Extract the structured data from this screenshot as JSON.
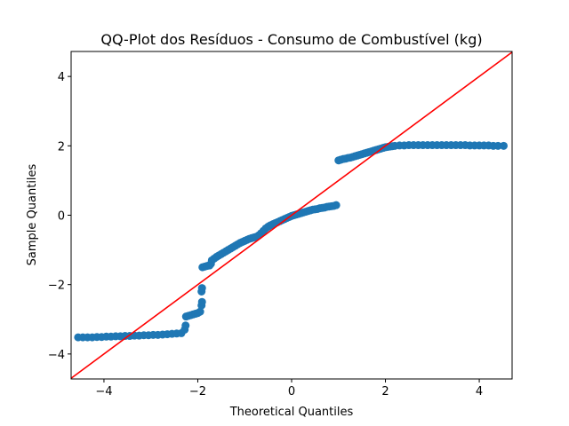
{
  "chart_data": {
    "type": "scatter",
    "title": "QQ-Plot dos Resíduos - Consumo de Combustível (kg)",
    "xlabel": "Theoretical Quantiles",
    "ylabel": "Sample Quantiles",
    "xlim": [
      -4.7,
      4.7
    ],
    "ylim": [
      -4.72,
      4.72
    ],
    "x_ticks": [
      -4,
      -2,
      0,
      2,
      4
    ],
    "y_ticks": [
      -4,
      -2,
      0,
      2,
      4
    ],
    "x_tick_labels": [
      "−4",
      "−2",
      "0",
      "2",
      "4"
    ],
    "y_tick_labels": [
      "−4",
      "−2",
      "0",
      "2",
      "4"
    ],
    "grid": false,
    "marker_color": "#1f77b4",
    "reference_line": {
      "color": "#ff0000",
      "slope": 1,
      "intercept": 0
    },
    "series": [
      {
        "points": [
          [
            -4.55,
            -3.52
          ],
          [
            -4.45,
            -3.52
          ],
          [
            -4.35,
            -3.52
          ],
          [
            -4.25,
            -3.52
          ],
          [
            -4.15,
            -3.51
          ],
          [
            -4.05,
            -3.51
          ],
          [
            -3.95,
            -3.5
          ],
          [
            -3.85,
            -3.5
          ],
          [
            -3.75,
            -3.49
          ],
          [
            -3.65,
            -3.49
          ],
          [
            -3.55,
            -3.48
          ],
          [
            -3.45,
            -3.48
          ],
          [
            -3.35,
            -3.47
          ],
          [
            -3.25,
            -3.47
          ],
          [
            -3.15,
            -3.46
          ],
          [
            -3.05,
            -3.46
          ],
          [
            -2.95,
            -3.45
          ],
          [
            -2.85,
            -3.45
          ],
          [
            -2.75,
            -3.44
          ],
          [
            -2.65,
            -3.43
          ],
          [
            -2.55,
            -3.42
          ],
          [
            -2.45,
            -3.41
          ],
          [
            -2.35,
            -3.4
          ],
          [
            -2.28,
            -3.3
          ],
          [
            -2.26,
            -3.18
          ],
          [
            -2.25,
            -2.92
          ],
          [
            -2.2,
            -2.9
          ],
          [
            -2.15,
            -2.88
          ],
          [
            -2.1,
            -2.86
          ],
          [
            -2.05,
            -2.84
          ],
          [
            -2.0,
            -2.82
          ],
          [
            -1.95,
            -2.78
          ],
          [
            -1.92,
            -2.6
          ],
          [
            -1.91,
            -2.5
          ],
          [
            -1.92,
            -2.2
          ],
          [
            -1.91,
            -2.1
          ],
          [
            -1.9,
            -1.5
          ],
          [
            -1.85,
            -1.48
          ],
          [
            -1.8,
            -1.46
          ],
          [
            -1.75,
            -1.45
          ],
          [
            -1.72,
            -1.4
          ],
          [
            -1.7,
            -1.3
          ],
          [
            -1.65,
            -1.25
          ],
          [
            -1.6,
            -1.2
          ],
          [
            -1.55,
            -1.16
          ],
          [
            -1.5,
            -1.12
          ],
          [
            -1.45,
            -1.08
          ],
          [
            -1.4,
            -1.04
          ],
          [
            -1.35,
            -1.0
          ],
          [
            -1.3,
            -0.96
          ],
          [
            -1.25,
            -0.92
          ],
          [
            -1.2,
            -0.88
          ],
          [
            -1.15,
            -0.84
          ],
          [
            -1.1,
            -0.8
          ],
          [
            -1.05,
            -0.77
          ],
          [
            -1.0,
            -0.74
          ],
          [
            -0.95,
            -0.71
          ],
          [
            -0.9,
            -0.68
          ],
          [
            -0.85,
            -0.66
          ],
          [
            -0.8,
            -0.64
          ],
          [
            -0.75,
            -0.62
          ],
          [
            -0.7,
            -0.58
          ],
          [
            -0.65,
            -0.52
          ],
          [
            -0.6,
            -0.45
          ],
          [
            -0.55,
            -0.38
          ],
          [
            -0.5,
            -0.33
          ],
          [
            -0.45,
            -0.29
          ],
          [
            -0.4,
            -0.26
          ],
          [
            -0.35,
            -0.23
          ],
          [
            -0.3,
            -0.2
          ],
          [
            -0.25,
            -0.17
          ],
          [
            -0.2,
            -0.14
          ],
          [
            -0.15,
            -0.11
          ],
          [
            -0.1,
            -0.08
          ],
          [
            -0.05,
            -0.05
          ],
          [
            0.0,
            -0.02
          ],
          [
            0.05,
            0.0
          ],
          [
            0.1,
            0.02
          ],
          [
            0.15,
            0.04
          ],
          [
            0.2,
            0.06
          ],
          [
            0.25,
            0.08
          ],
          [
            0.3,
            0.1
          ],
          [
            0.35,
            0.12
          ],
          [
            0.4,
            0.14
          ],
          [
            0.45,
            0.16
          ],
          [
            0.5,
            0.17
          ],
          [
            0.55,
            0.18
          ],
          [
            0.6,
            0.2
          ],
          [
            0.65,
            0.21
          ],
          [
            0.7,
            0.22
          ],
          [
            0.75,
            0.24
          ],
          [
            0.8,
            0.25
          ],
          [
            0.85,
            0.26
          ],
          [
            0.9,
            0.27
          ],
          [
            0.95,
            0.29
          ],
          [
            1.0,
            1.58
          ],
          [
            1.05,
            1.6
          ],
          [
            1.1,
            1.62
          ],
          [
            1.15,
            1.63
          ],
          [
            1.2,
            1.65
          ],
          [
            1.25,
            1.66
          ],
          [
            1.3,
            1.68
          ],
          [
            1.35,
            1.7
          ],
          [
            1.4,
            1.72
          ],
          [
            1.45,
            1.74
          ],
          [
            1.5,
            1.76
          ],
          [
            1.55,
            1.78
          ],
          [
            1.6,
            1.8
          ],
          [
            1.65,
            1.82
          ],
          [
            1.7,
            1.84
          ],
          [
            1.75,
            1.86
          ],
          [
            1.8,
            1.88
          ],
          [
            1.85,
            1.9
          ],
          [
            1.9,
            1.92
          ],
          [
            1.95,
            1.94
          ],
          [
            2.0,
            1.96
          ],
          [
            2.05,
            1.97
          ],
          [
            2.1,
            1.98
          ],
          [
            2.15,
            1.99
          ],
          [
            2.2,
            2.0
          ],
          [
            2.3,
            2.01
          ],
          [
            2.4,
            2.01
          ],
          [
            2.5,
            2.02
          ],
          [
            2.6,
            2.02
          ],
          [
            2.7,
            2.02
          ],
          [
            2.8,
            2.02
          ],
          [
            2.9,
            2.02
          ],
          [
            3.0,
            2.02
          ],
          [
            3.1,
            2.02
          ],
          [
            3.2,
            2.02
          ],
          [
            3.3,
            2.02
          ],
          [
            3.4,
            2.02
          ],
          [
            3.5,
            2.02
          ],
          [
            3.6,
            2.02
          ],
          [
            3.7,
            2.02
          ],
          [
            3.8,
            2.01
          ],
          [
            3.9,
            2.01
          ],
          [
            4.0,
            2.01
          ],
          [
            4.1,
            2.01
          ],
          [
            4.2,
            2.01
          ],
          [
            4.3,
            2.0
          ],
          [
            4.4,
            2.0
          ],
          [
            4.52,
            2.0
          ]
        ]
      }
    ]
  }
}
